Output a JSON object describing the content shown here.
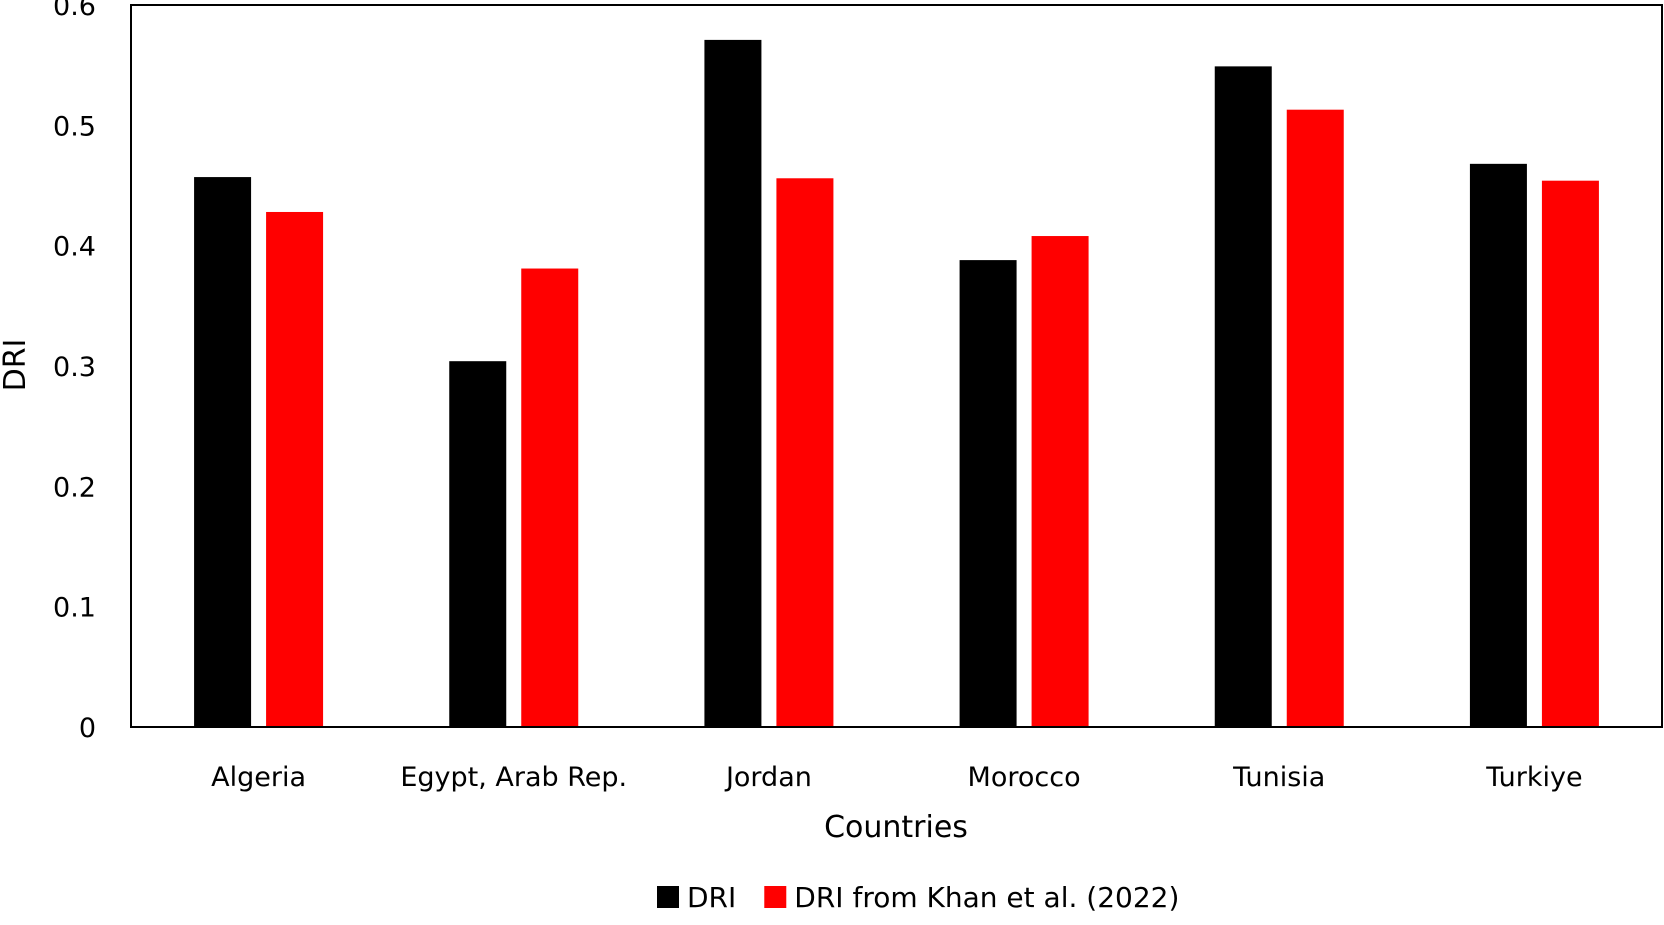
{
  "chart_data": {
    "type": "bar",
    "xlabel": "Countries",
    "ylabel": "DRI",
    "ylim": [
      0,
      0.6
    ],
    "yticks": [
      "0",
      "0.1",
      "0.2",
      "0.3",
      "0.4",
      "0.5",
      "0.6"
    ],
    "grid": false,
    "legend_position": "bottom",
    "categories": [
      "Algeria",
      "Egypt, Arab Rep.",
      "Jordan",
      "Morocco",
      "Tunisia",
      "Turkiye"
    ],
    "series": [
      {
        "name": "DRI",
        "color": "#000000",
        "values": [
          0.457,
          0.304,
          0.571,
          0.388,
          0.549,
          0.468
        ]
      },
      {
        "name": "DRI from Khan et al. (2022)",
        "color": "#ff0000",
        "values": [
          0.428,
          0.381,
          0.456,
          0.408,
          0.513,
          0.454
        ]
      }
    ]
  }
}
